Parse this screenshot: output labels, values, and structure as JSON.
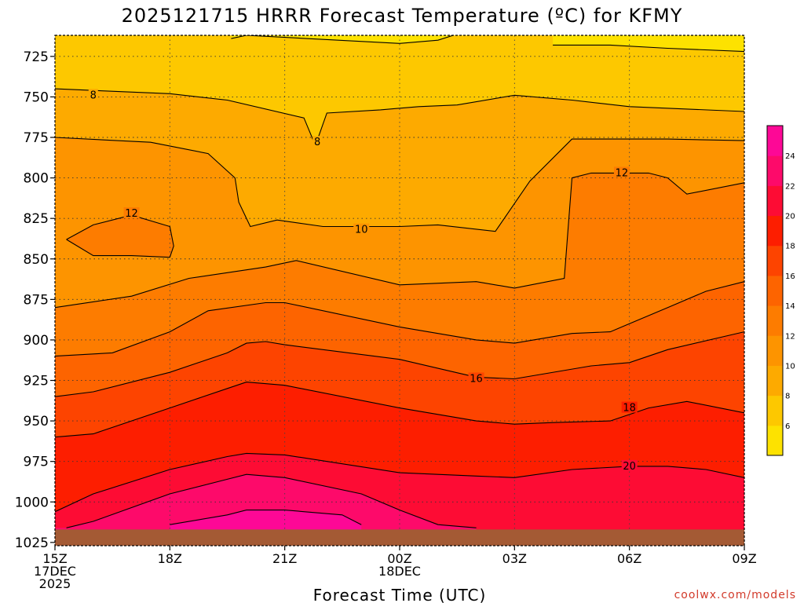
{
  "chart_data": {
    "type": "heatmap",
    "title": "2025121715 HRRR Forecast Temperature (ºC) for KFMY",
    "xlabel": "Forecast Time (UTC)",
    "ylabel": "",
    "y_ticks": [
      "725",
      "750",
      "775",
      "800",
      "825",
      "850",
      "875",
      "900",
      "925",
      "950",
      "975",
      "1000",
      "1025"
    ],
    "y_values": [
      725,
      750,
      775,
      800,
      825,
      850,
      875,
      900,
      925,
      950,
      975,
      1000,
      1025
    ],
    "ylim": [
      712,
      1027
    ],
    "x_ticks": [
      {
        "hour": 0,
        "lines": [
          "15Z",
          "17DEC",
          "2025"
        ]
      },
      {
        "hour": 3,
        "lines": [
          "18Z"
        ]
      },
      {
        "hour": 6,
        "lines": [
          "21Z"
        ]
      },
      {
        "hour": 9,
        "lines": [
          "00Z",
          "18DEC"
        ]
      },
      {
        "hour": 12,
        "lines": [
          "03Z"
        ]
      },
      {
        "hour": 15,
        "lines": [
          "06Z"
        ]
      },
      {
        "hour": 18,
        "lines": [
          "09Z"
        ]
      }
    ],
    "xlim_hours": [
      0,
      18
    ],
    "grid": true,
    "colorbar": {
      "levels": [
        6,
        8,
        10,
        12,
        14,
        16,
        18,
        20,
        22,
        24
      ],
      "labels": [
        "6",
        "8",
        "10",
        "12",
        "14",
        "16",
        "18",
        "20",
        "22",
        "24"
      ],
      "colors": [
        "#fde200",
        "#fdc800",
        "#fdaa00",
        "#fd9400",
        "#fd7c00",
        "#fd6400",
        "#fd4400",
        "#fd1e00",
        "#fd0c34",
        "#fd0a6a",
        "#fd0896"
      ]
    },
    "contours": [
      {
        "level": 8,
        "points": [
          [
            0,
            745
          ],
          [
            3,
            748
          ],
          [
            4.5,
            752
          ],
          [
            6.5,
            763
          ],
          [
            6.8,
            780
          ],
          [
            7.1,
            760
          ],
          [
            8.5,
            758
          ],
          [
            9.5,
            756
          ],
          [
            10.5,
            755
          ],
          [
            12,
            749
          ],
          [
            13.5,
            752
          ],
          [
            15,
            756
          ],
          [
            18,
            759
          ]
        ]
      },
      {
        "level": 10,
        "points": [
          [
            0,
            775
          ],
          [
            2.5,
            778
          ],
          [
            4,
            785
          ],
          [
            4.7,
            800
          ],
          [
            4.8,
            815
          ],
          [
            5.1,
            830
          ],
          [
            5.8,
            826
          ],
          [
            7,
            830
          ],
          [
            9,
            830
          ],
          [
            10,
            829
          ],
          [
            11.5,
            833
          ],
          [
            12.4,
            802
          ],
          [
            13.5,
            776
          ],
          [
            16,
            776
          ],
          [
            18,
            777
          ]
        ]
      },
      {
        "level": 12,
        "points": [
          [
            0,
            880
          ],
          [
            2,
            873
          ],
          [
            3.5,
            862
          ],
          [
            5.5,
            855
          ],
          [
            6.3,
            851
          ],
          [
            9,
            866
          ],
          [
            11,
            864
          ],
          [
            12,
            868
          ],
          [
            13.3,
            862
          ],
          [
            13.5,
            800
          ],
          [
            14,
            797
          ],
          [
            15.5,
            797
          ],
          [
            16,
            800
          ],
          [
            16.5,
            810
          ],
          [
            18,
            803
          ]
        ]
      },
      {
        "level": 14,
        "points": [
          [
            0,
            910
          ],
          [
            1.5,
            908
          ],
          [
            3,
            895
          ],
          [
            4,
            882
          ],
          [
            5.5,
            877
          ],
          [
            6,
            877
          ],
          [
            9,
            892
          ],
          [
            11,
            900
          ],
          [
            12,
            902
          ],
          [
            13.5,
            896
          ],
          [
            14.5,
            895
          ],
          [
            15,
            890
          ],
          [
            16,
            880
          ],
          [
            17,
            870
          ],
          [
            18,
            864
          ]
        ]
      },
      {
        "level": 16,
        "points": [
          [
            0,
            935
          ],
          [
            1,
            932
          ],
          [
            3,
            920
          ],
          [
            4.5,
            908
          ],
          [
            5,
            902
          ],
          [
            5.5,
            901
          ],
          [
            6,
            903
          ],
          [
            9,
            912
          ],
          [
            11,
            923
          ],
          [
            12,
            924
          ],
          [
            14,
            916
          ],
          [
            15,
            914
          ],
          [
            16,
            906
          ],
          [
            18,
            895
          ]
        ]
      },
      {
        "level": 18,
        "points": [
          [
            0,
            960
          ],
          [
            1,
            958
          ],
          [
            3,
            942
          ],
          [
            4.5,
            930
          ],
          [
            5,
            926
          ],
          [
            6,
            928
          ],
          [
            9,
            942
          ],
          [
            11,
            950
          ],
          [
            12,
            952
          ],
          [
            13,
            951
          ],
          [
            14.5,
            950
          ],
          [
            15.5,
            942
          ],
          [
            16.5,
            938
          ],
          [
            18,
            945
          ]
        ]
      },
      {
        "level": 20,
        "points": [
          [
            0,
            1006
          ],
          [
            1,
            995
          ],
          [
            3,
            980
          ],
          [
            4.5,
            972
          ],
          [
            5,
            970
          ],
          [
            6,
            971
          ],
          [
            9,
            982
          ],
          [
            11,
            984
          ],
          [
            12,
            985
          ],
          [
            13.5,
            980
          ],
          [
            15,
            978
          ],
          [
            16,
            978
          ],
          [
            17,
            980
          ],
          [
            18,
            985
          ]
        ]
      },
      {
        "level": 22,
        "points": [
          [
            0.3,
            1016
          ],
          [
            1,
            1012
          ],
          [
            3,
            995
          ],
          [
            4.5,
            986
          ],
          [
            5,
            983
          ],
          [
            6,
            985
          ],
          [
            8,
            995
          ],
          [
            9,
            1005
          ],
          [
            10,
            1014
          ],
          [
            11,
            1016
          ]
        ]
      },
      {
        "level": 24,
        "points": [
          [
            3,
            1014
          ],
          [
            4.5,
            1008
          ],
          [
            5,
            1005
          ],
          [
            6,
            1005
          ],
          [
            7.5,
            1008
          ],
          [
            8,
            1014
          ]
        ]
      },
      {
        "level": 12,
        "points": [
          [
            0.3,
            838
          ],
          [
            1,
            829
          ],
          [
            2,
            823
          ],
          [
            3,
            830
          ],
          [
            3.1,
            842
          ],
          [
            3,
            849
          ],
          [
            2,
            848
          ],
          [
            1,
            848
          ],
          [
            0.3,
            838
          ]
        ]
      },
      {
        "level": 6,
        "points": [
          [
            4.6,
            714
          ],
          [
            5,
            712
          ],
          [
            9,
            717
          ],
          [
            10,
            715
          ],
          [
            10.4,
            712
          ]
        ]
      },
      {
        "level": 6,
        "points": [
          [
            13,
            718
          ],
          [
            14.5,
            718
          ],
          [
            16,
            720
          ],
          [
            18,
            722
          ]
        ]
      }
    ],
    "contour_labels": [
      {
        "text": "8",
        "hour": 1,
        "p": 749
      },
      {
        "text": "8",
        "hour": 6.85,
        "p": 778
      },
      {
        "text": "10",
        "hour": 8,
        "p": 832
      },
      {
        "text": "12",
        "hour": 2,
        "p": 822
      },
      {
        "text": "12",
        "hour": 14.8,
        "p": 797
      },
      {
        "text": "16",
        "hour": 11,
        "p": 924
      },
      {
        "text": "18",
        "hour": 15,
        "p": 942
      },
      {
        "text": "20",
        "hour": 15,
        "p": 978
      }
    ],
    "ground": {
      "color": "#a45a34",
      "top_p": 1017
    }
  },
  "credit": "coolwx.com/models"
}
